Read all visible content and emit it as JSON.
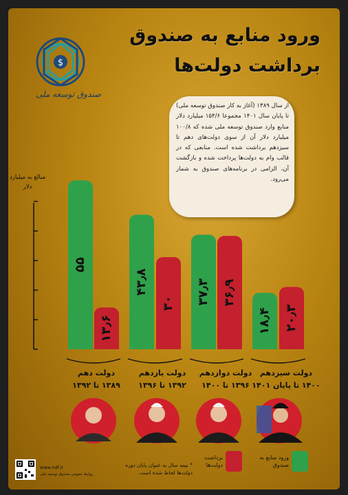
{
  "header": {
    "title_line1": "ورود منابع به صندوق",
    "title_line2": "برداشت دولت‌ها"
  },
  "logo": {
    "text": "صندوق توسعه ملی",
    "colors": {
      "primary": "#1e4a7a",
      "accent": "#2e9a9a"
    }
  },
  "callout": {
    "text": "از سال ۱۳۸۹ (آغاز به کار صندوق توسعه ملی) تا پایان سال ۱۴۰۱ مجموعا ۱۵۴/۶ میلیارد دلار منابع وارد صندوق توسعه ملی شده که ۱۰۰/۸ میلیارد دلار آن از سوی دولت‌های دهم تا سیزدهم برداشت شده است. منابعی که در قالب وام به دولت‌ها پرداخت شده و بازگشت آن، الزامی در برنامه‌های صندوق به شمار می‌رود."
  },
  "chart_data": {
    "type": "bar",
    "ylabel": "مبالغ به میلیارد دلار",
    "categories": [
      "دولت دهم",
      "دولت یازدهم",
      "دولت دوازدهم",
      "دولت سیزدهم"
    ],
    "years": [
      "۱۳۸۹ تا ۱۳۹۲",
      "۱۳۹۲ تا ۱۳۹۶",
      "۱۳۹۶ تا ۱۴۰۰",
      "۱۴۰۰ تا پایان ۱۴۰۱"
    ],
    "series": [
      {
        "name": "ورود منابع به صندوق",
        "values": [
          55,
          43.8,
          37.3,
          18.4
        ],
        "labels": [
          "۵۵",
          "۴۳٫۸",
          "۳۷٫۳",
          "۱۸٫۴"
        ],
        "color": "#2fa14b"
      },
      {
        "name": "برداشت دولت‌ها",
        "values": [
          13.6,
          30,
          36.9,
          20.3
        ],
        "labels": [
          "۱۳٫۶",
          "۳۰",
          "۳۶٫۹",
          "۲۰٫۳"
        ],
        "color": "#c4202e"
      }
    ],
    "ylim": [
      0,
      60
    ],
    "grid": false,
    "legend": "bottom"
  },
  "legend": {
    "green_label": "ورود منابع به صندوق",
    "red_label": "برداشت دولت‌ها"
  },
  "footer": {
    "note": "* نیمه سال به عنوان پایان دوره دولت‌ها لحاظ شده است.",
    "website": "www.ndf.ir",
    "website_sub": "روابط عمومی صندوق توسعه ملی"
  }
}
